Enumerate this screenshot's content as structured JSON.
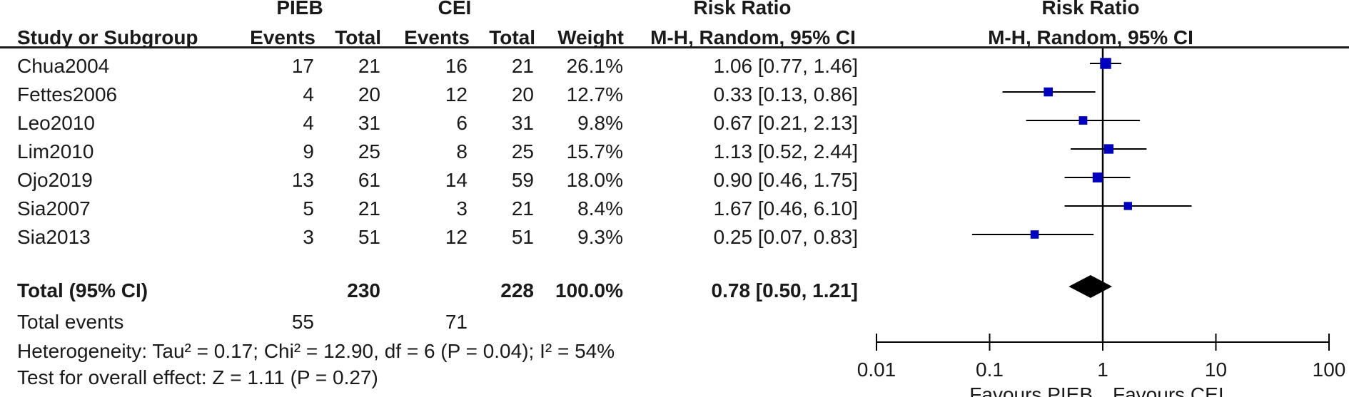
{
  "header": {
    "group_pieb": "PIEB",
    "group_cei": "CEI",
    "risk_ratio_table": "Risk Ratio",
    "risk_ratio_plot": "Risk Ratio",
    "col_study": "Study or Subgroup",
    "col_events1": "Events",
    "col_total1": "Total",
    "col_events2": "Events",
    "col_total2": "Total",
    "col_weight": "Weight",
    "col_ci": "M-H, Random, 95% CI",
    "plot_ci": "M-H, Random, 95% CI"
  },
  "studies": [
    {
      "name": "Chua2004",
      "events1": "17",
      "total1": "21",
      "events2": "16",
      "total2": "21",
      "weight": "26.1%",
      "ci_text": "1.06 [0.77, 1.46]"
    },
    {
      "name": "Fettes2006",
      "events1": "4",
      "total1": "20",
      "events2": "12",
      "total2": "20",
      "weight": "12.7%",
      "ci_text": "0.33 [0.13, 0.86]"
    },
    {
      "name": "Leo2010",
      "events1": "4",
      "total1": "31",
      "events2": "6",
      "total2": "31",
      "weight": "9.8%",
      "ci_text": "0.67 [0.21, 2.13]"
    },
    {
      "name": "Lim2010",
      "events1": "9",
      "total1": "25",
      "events2": "8",
      "total2": "25",
      "weight": "15.7%",
      "ci_text": "1.13 [0.52, 2.44]"
    },
    {
      "name": "Ojo2019",
      "events1": "13",
      "total1": "61",
      "events2": "14",
      "total2": "59",
      "weight": "18.0%",
      "ci_text": "0.90 [0.46, 1.75]"
    },
    {
      "name": "Sia2007",
      "events1": "5",
      "total1": "21",
      "events2": "3",
      "total2": "21",
      "weight": "8.4%",
      "ci_text": "1.67 [0.46, 6.10]"
    },
    {
      "name": "Sia2013",
      "events1": "3",
      "total1": "51",
      "events2": "12",
      "total2": "51",
      "weight": "9.3%",
      "ci_text": "0.25 [0.07, 0.83]"
    }
  ],
  "total": {
    "label": "Total (95% CI)",
    "total1": "230",
    "total2": "228",
    "weight": "100.0%",
    "ci_text": "0.78 [0.50, 1.21]"
  },
  "total_events": {
    "label": "Total events",
    "events1": "55",
    "events2": "71"
  },
  "heterogeneity": "Heterogeneity: Tau² = 0.17; Chi² = 12.90, df = 6 (P = 0.04); I² = 54%",
  "overall_effect": "Test for overall effect: Z = 1.11 (P = 0.27)",
  "axis": {
    "ticks": [
      {
        "value": 0.01,
        "label": "0.01"
      },
      {
        "value": 0.1,
        "label": "0.1"
      },
      {
        "value": 1,
        "label": "1"
      },
      {
        "value": 10,
        "label": "10"
      },
      {
        "value": 100,
        "label": "100"
      }
    ],
    "favours_left": "Favours PIEB",
    "favours_right": "Favours CEI"
  },
  "colors": {
    "marker": "#0000c0",
    "diamond": "#000000",
    "text": "#1a1a1a"
  },
  "chart_data": {
    "type": "scatter",
    "title": "Risk Ratio",
    "xlabel": "M-H, Random, 95% CI",
    "x_scale": "log",
    "xlim": [
      0.01,
      100
    ],
    "null_line": 1,
    "series": [
      {
        "rr": [
          1.06,
          0.33,
          0.67,
          1.13,
          0.9,
          1.67,
          0.25
        ],
        "ci_low": [
          0.77,
          0.13,
          0.21,
          0.52,
          0.46,
          0.46,
          0.07
        ],
        "ci_high": [
          1.46,
          0.86,
          2.13,
          2.44,
          1.75,
          6.1,
          0.83
        ],
        "weight_pct": [
          26.1,
          12.7,
          9.8,
          15.7,
          18.0,
          8.4,
          9.3
        ]
      }
    ],
    "pooled": {
      "rr": 0.78,
      "ci_low": 0.5,
      "ci_high": 1.21
    }
  }
}
